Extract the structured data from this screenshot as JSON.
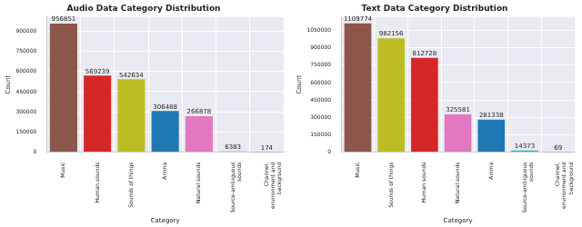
{
  "chart_data": [
    {
      "type": "bar",
      "title": "Audio Data Category Distribution",
      "x_label": "Category",
      "y_label": "Count",
      "categories": [
        "Music",
        "Human sounds",
        "Sounds of things",
        "Anima",
        "Natural sounds",
        "Source-ambiguous sounds",
        "Channel, environment and background"
      ],
      "values": [
        956851,
        569239,
        542634,
        306488,
        266878,
        6383,
        174
      ],
      "colors": [
        "#8c564b",
        "#d62728",
        "#bcbd22",
        "#1f77b4",
        "#e377c2",
        "#17becf",
        "#7f7f7f"
      ],
      "ylim": [
        0,
        1005000
      ],
      "yticks": [
        0,
        150000,
        300000,
        450000,
        600000,
        750000,
        900000
      ],
      "grid": true,
      "data_labels": true
    },
    {
      "type": "bar",
      "title": "Text Data Category Distribution",
      "x_label": "Category",
      "y_label": "Count",
      "categories": [
        "Music",
        "Sounds of things",
        "Human sounds",
        "Natural sounds",
        "Anima",
        "Source-ambiguous sounds",
        "Channel, environment and background"
      ],
      "values": [
        1109774,
        982156,
        812728,
        325581,
        281338,
        14373,
        69
      ],
      "colors": [
        "#8c564b",
        "#bcbd22",
        "#d62728",
        "#e377c2",
        "#1f77b4",
        "#17becf",
        "#7f7f7f"
      ],
      "ylim": [
        0,
        1165000
      ],
      "yticks": [
        0,
        150000,
        300000,
        450000,
        600000,
        750000,
        900000,
        1050000
      ],
      "grid": true,
      "data_labels": true
    }
  ]
}
